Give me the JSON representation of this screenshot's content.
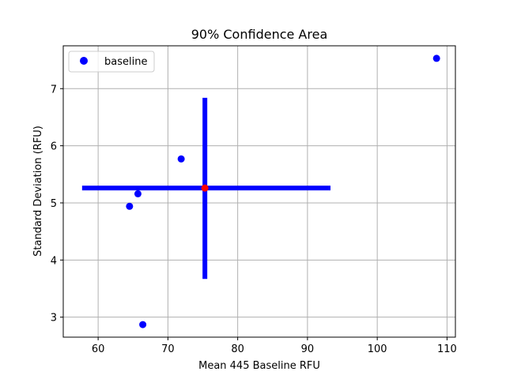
{
  "chart_data": {
    "type": "scatter",
    "title": "90% Confidence Area",
    "xlabel": "Mean 445 Baseline RFU",
    "ylabel": "Standard Deviation (RFU)",
    "xlim": [
      55.0,
      111.2
    ],
    "ylim": [
      2.65,
      7.75
    ],
    "xticks": [
      60,
      70,
      80,
      90,
      100,
      110
    ],
    "yticks": [
      3,
      4,
      5,
      6,
      7
    ],
    "grid": true,
    "legend": {
      "entries": [
        "baseline"
      ],
      "placement": "upper-left"
    },
    "series": [
      {
        "name": "baseline",
        "color": "#0000ff",
        "marker": "circle",
        "points": [
          {
            "x": 64.5,
            "y": 4.94
          },
          {
            "x": 65.7,
            "y": 5.16
          },
          {
            "x": 66.4,
            "y": 2.87
          },
          {
            "x": 71.9,
            "y": 5.77
          },
          {
            "x": 108.5,
            "y": 7.53
          }
        ]
      }
    ],
    "confidence_area": {
      "color": "#0000ff",
      "center": {
        "x": 75.3,
        "y": 5.26,
        "color": "#ff0000"
      },
      "x_range": [
        57.7,
        93.3
      ],
      "y_range": [
        3.67,
        6.84
      ]
    }
  }
}
